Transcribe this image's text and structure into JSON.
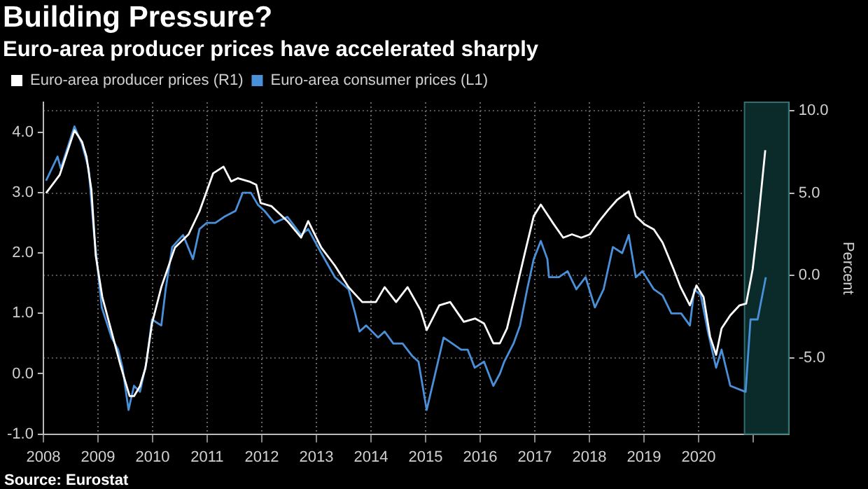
{
  "chart_data": {
    "type": "line",
    "title": "Building Pressure?",
    "subtitle": "Euro-area producer prices have accelerated sharply",
    "y2label": "Percent",
    "annotations": [
      "Source: Eurostat"
    ],
    "series": [
      {
        "name": "Euro-area producer prices (R1)",
        "color": "#ffffff",
        "axis": "y2",
        "x": [
          2008.05,
          2008.3,
          2008.57,
          2008.71,
          2008.79,
          2008.88,
          2008.96,
          2009.08,
          2009.25,
          2009.41,
          2009.58,
          2009.66,
          2009.77,
          2009.87,
          2009.99,
          2010.16,
          2010.41,
          2010.66,
          2010.86,
          2011.11,
          2011.3,
          2011.44,
          2011.56,
          2011.77,
          2011.9,
          2011.98,
          2012.18,
          2012.47,
          2012.72,
          2012.85,
          2013.09,
          2013.34,
          2013.59,
          2013.84,
          2014.09,
          2014.25,
          2014.46,
          2014.67,
          2014.91,
          2015.02,
          2015.25,
          2015.45,
          2015.7,
          2015.91,
          2016.07,
          2016.24,
          2016.36,
          2016.49,
          2016.65,
          2016.82,
          2016.98,
          2017.11,
          2017.19,
          2017.35,
          2017.52,
          2017.68,
          2017.85,
          2018.01,
          2018.18,
          2018.35,
          2018.51,
          2018.72,
          2018.85,
          2019.01,
          2019.18,
          2019.34,
          2019.54,
          2019.67,
          2019.84,
          2019.96,
          2020.09,
          2020.21,
          2020.32,
          2020.42,
          2020.58,
          2020.75,
          2020.87,
          2020.99,
          2021.09,
          2021.22
        ],
        "values": [
          5.0,
          6.1,
          8.8,
          8.1,
          7.2,
          5.2,
          1.2,
          -1.3,
          -3.4,
          -5.4,
          -7.3,
          -7.3,
          -6.7,
          -5.6,
          -2.9,
          -0.7,
          1.7,
          2.5,
          3.9,
          6.2,
          6.6,
          5.7,
          5.9,
          5.7,
          5.5,
          4.4,
          4.2,
          3.3,
          2.3,
          3.3,
          1.7,
          0.6,
          -0.7,
          -1.6,
          -1.6,
          -0.7,
          -1.6,
          -0.7,
          -2.1,
          -3.3,
          -1.8,
          -1.6,
          -2.8,
          -2.6,
          -2.9,
          -4.1,
          -4.1,
          -3.2,
          -1.0,
          1.4,
          3.6,
          4.3,
          3.9,
          3.1,
          2.3,
          2.5,
          2.3,
          2.5,
          3.3,
          4.0,
          4.6,
          5.1,
          3.6,
          3.1,
          2.8,
          2.0,
          0.4,
          -0.7,
          -1.8,
          -0.6,
          -1.3,
          -3.7,
          -4.8,
          -3.2,
          -2.4,
          -1.8,
          -1.7,
          0.4,
          3.3,
          7.6
        ]
      },
      {
        "name": "Euro-area consumer prices (L1)",
        "color": "#4a90d9",
        "x": [
          2008.05,
          2008.26,
          2008.32,
          2008.57,
          2008.71,
          2008.83,
          2008.93,
          2009.07,
          2009.25,
          2009.37,
          2009.45,
          2009.56,
          2009.66,
          2009.77,
          2009.89,
          2009.99,
          2010.16,
          2010.24,
          2010.36,
          2010.56,
          2010.74,
          2010.86,
          2010.99,
          2011.15,
          2011.31,
          2011.52,
          2011.65,
          2011.8,
          2011.93,
          2012.05,
          2012.23,
          2012.47,
          2012.72,
          2012.85,
          2013.09,
          2013.34,
          2013.59,
          2013.71,
          2013.79,
          2013.91,
          2014.13,
          2014.25,
          2014.41,
          2014.58,
          2014.75,
          2014.87,
          2015.02,
          2015.15,
          2015.33,
          2015.49,
          2015.65,
          2015.77,
          2015.9,
          2016.07,
          2016.24,
          2016.36,
          2016.44,
          2016.61,
          2016.73,
          2016.86,
          2016.98,
          2017.11,
          2017.23,
          2017.26,
          2017.44,
          2017.6,
          2017.76,
          2017.93,
          2018.1,
          2018.26,
          2018.43,
          2018.6,
          2018.72,
          2018.85,
          2018.97,
          2019.18,
          2019.34,
          2019.5,
          2019.68,
          2019.84,
          2019.92,
          2020.04,
          2020.17,
          2020.32,
          2020.42,
          2020.58,
          2020.86,
          2020.95,
          2021.08,
          2021.23
        ],
        "values": [
          3.2,
          3.6,
          3.4,
          4.1,
          3.8,
          3.4,
          2.3,
          1.1,
          0.6,
          0.4,
          0.1,
          -0.6,
          -0.2,
          -0.3,
          0.2,
          0.9,
          0.8,
          1.4,
          2.1,
          2.3,
          1.9,
          2.4,
          2.5,
          2.5,
          2.6,
          2.7,
          3.0,
          3.0,
          2.8,
          2.7,
          2.5,
          2.6,
          2.3,
          2.4,
          2.0,
          1.6,
          1.4,
          1.0,
          0.7,
          0.8,
          0.6,
          0.7,
          0.5,
          0.5,
          0.3,
          0.2,
          -0.6,
          -0.1,
          0.6,
          0.5,
          0.4,
          0.4,
          0.1,
          0.2,
          -0.2,
          0.0,
          0.2,
          0.5,
          0.8,
          1.4,
          1.9,
          2.2,
          1.9,
          1.6,
          1.6,
          1.7,
          1.4,
          1.6,
          1.1,
          1.4,
          2.1,
          2.0,
          2.3,
          1.6,
          1.7,
          1.4,
          1.3,
          1.0,
          1.0,
          0.8,
          1.4,
          1.3,
          0.7,
          0.1,
          0.4,
          -0.2,
          -0.3,
          0.9,
          0.9,
          1.6
        ]
      }
    ],
    "xlim": [
      2008,
      2021.65
    ],
    "xticks": [
      2008,
      2009,
      2010,
      2011,
      2012,
      2013,
      2014,
      2015,
      2016,
      2017,
      2018,
      2019,
      2020,
      {
        "value": 2021,
        "label": null
      }
    ],
    "ylim": [
      -1,
      4.5
    ],
    "yticks": [
      {
        "value": -1,
        "label": "-1.0"
      },
      {
        "value": 0,
        "label": "0.0"
      },
      {
        "value": 1,
        "label": "1.0"
      },
      {
        "value": 2,
        "label": "2.0"
      },
      {
        "value": 3,
        "label": "3.0"
      },
      {
        "value": 4,
        "label": "4.0"
      }
    ],
    "y2lim": [
      -9.6,
      10.5
    ],
    "y2ticks": [
      {
        "value": -5,
        "label": "-5.0"
      },
      {
        "value": 0,
        "label": "0.0"
      },
      {
        "value": 5,
        "label": "5.0"
      },
      {
        "value": 10,
        "label": "10.0"
      }
    ],
    "bands": [
      {
        "axis": "x",
        "from": 2020.84,
        "to": 2021.65,
        "color": "#0b2a2a"
      }
    ],
    "grid": true,
    "legend": "top left"
  }
}
